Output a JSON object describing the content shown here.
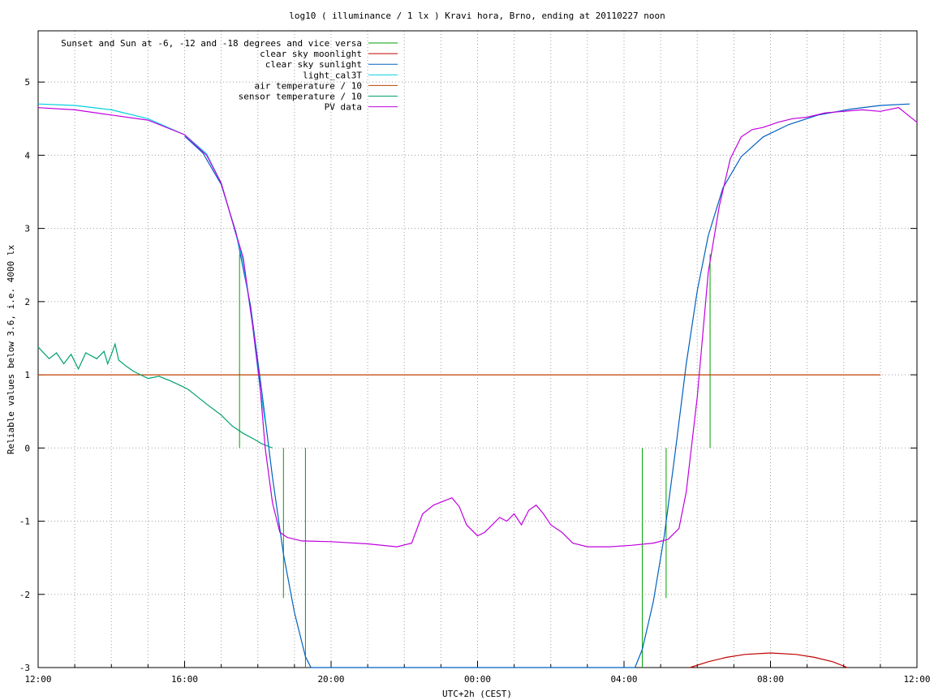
{
  "chart_data": {
    "type": "line",
    "title": "log10 ( illuminance / 1 lx ) Kravi hora, Brno, ending at 20110227 noon",
    "xlabel": "UTC+2h (CEST)",
    "ylabel": "Reliable values below 3.6, i.e. 4000 lx",
    "xlim": [
      0,
      24
    ],
    "ylim": [
      -3,
      5.7
    ],
    "x_ticks": [
      {
        "v": 0,
        "label": "12:00"
      },
      {
        "v": 4,
        "label": "16:00"
      },
      {
        "v": 8,
        "label": "20:00"
      },
      {
        "v": 12,
        "label": "00:00"
      },
      {
        "v": 16,
        "label": "04:00"
      },
      {
        "v": 20,
        "label": "08:00"
      },
      {
        "v": 24,
        "label": "12:00"
      }
    ],
    "x_minor_step": 1,
    "y_ticks": [
      -3,
      -2,
      -1,
      0,
      1,
      2,
      3,
      4,
      5
    ],
    "grid": true,
    "legend_position": "top-left",
    "series": [
      {
        "name": "Sunset and Sun at -6, -12 and -18 degrees and vice versa",
        "color": "#00a000",
        "kind": "impulses",
        "points": [
          [
            5.5,
            2.65
          ],
          [
            6.7,
            -2.05
          ],
          [
            7.3,
            -3
          ],
          [
            16.5,
            -3
          ],
          [
            17.15,
            -2.05
          ],
          [
            18.35,
            2.65
          ]
        ]
      },
      {
        "name": "clear sky moonlight",
        "color": "#c00000",
        "points": [
          [
            17.8,
            -3
          ],
          [
            18.3,
            -2.92
          ],
          [
            18.8,
            -2.86
          ],
          [
            19.3,
            -2.82
          ],
          [
            20.0,
            -2.8
          ],
          [
            20.7,
            -2.82
          ],
          [
            21.2,
            -2.86
          ],
          [
            21.7,
            -2.92
          ],
          [
            22.1,
            -3
          ]
        ]
      },
      {
        "name": "clear sky sunlight",
        "color": "#0060c0",
        "points": [
          [
            4.0,
            4.26
          ],
          [
            4.5,
            4.03
          ],
          [
            5.0,
            3.6
          ],
          [
            5.4,
            2.95
          ],
          [
            5.8,
            1.95
          ],
          [
            6.1,
            0.8
          ],
          [
            6.4,
            -0.4
          ],
          [
            6.7,
            -1.45
          ],
          [
            7.0,
            -2.25
          ],
          [
            7.3,
            -2.85
          ],
          [
            7.45,
            -3
          ],
          [
            16.3,
            -3
          ],
          [
            16.5,
            -2.75
          ],
          [
            16.8,
            -2.1
          ],
          [
            17.1,
            -1.2
          ],
          [
            17.4,
            -0.05
          ],
          [
            17.7,
            1.15
          ],
          [
            18.0,
            2.15
          ],
          [
            18.3,
            2.9
          ],
          [
            18.7,
            3.55
          ],
          [
            19.2,
            3.98
          ],
          [
            19.8,
            4.25
          ],
          [
            20.5,
            4.42
          ],
          [
            21.3,
            4.55
          ],
          [
            22.2,
            4.63
          ],
          [
            23.0,
            4.68
          ],
          [
            23.8,
            4.7
          ]
        ]
      },
      {
        "name": "light_cal3T",
        "color": "#00d0e0",
        "points": [
          [
            0.0,
            4.7
          ],
          [
            1.0,
            4.68
          ],
          [
            2.0,
            4.62
          ],
          [
            3.0,
            4.5
          ],
          [
            4.0,
            4.28
          ],
          [
            4.6,
            4.02
          ],
          [
            5.0,
            3.62
          ],
          [
            5.3,
            3.1
          ],
          [
            5.6,
            2.55
          ],
          [
            5.85,
            1.7
          ],
          [
            6.05,
            0.85
          ],
          [
            6.2,
            0.35
          ]
        ]
      },
      {
        "name": "air temperature / 10",
        "color": "#c04000",
        "points": [
          [
            0.0,
            1.0
          ],
          [
            23.0,
            1.0
          ]
        ]
      },
      {
        "name": "sensor temperature / 10",
        "color": "#00a070",
        "points": [
          [
            0.0,
            1.38
          ],
          [
            0.3,
            1.22
          ],
          [
            0.5,
            1.3
          ],
          [
            0.7,
            1.15
          ],
          [
            0.9,
            1.28
          ],
          [
            1.1,
            1.08
          ],
          [
            1.3,
            1.3
          ],
          [
            1.6,
            1.22
          ],
          [
            1.8,
            1.32
          ],
          [
            1.9,
            1.15
          ],
          [
            2.0,
            1.28
          ],
          [
            2.1,
            1.42
          ],
          [
            2.2,
            1.2
          ],
          [
            2.4,
            1.12
          ],
          [
            2.6,
            1.05
          ],
          [
            2.8,
            1.0
          ],
          [
            3.0,
            0.95
          ],
          [
            3.3,
            0.98
          ],
          [
            3.6,
            0.92
          ],
          [
            3.9,
            0.85
          ],
          [
            4.1,
            0.8
          ],
          [
            4.3,
            0.72
          ],
          [
            4.6,
            0.6
          ],
          [
            5.0,
            0.45
          ],
          [
            5.3,
            0.3
          ],
          [
            5.6,
            0.2
          ],
          [
            5.9,
            0.12
          ],
          [
            6.1,
            0.06
          ],
          [
            6.3,
            0.02
          ],
          [
            6.4,
            0.0
          ]
        ]
      },
      {
        "name": "PV data",
        "color": "#c000e0",
        "points": [
          [
            0.0,
            4.65
          ],
          [
            1.0,
            4.62
          ],
          [
            2.0,
            4.55
          ],
          [
            3.0,
            4.48
          ],
          [
            4.0,
            4.28
          ],
          [
            4.6,
            4.0
          ],
          [
            5.0,
            3.62
          ],
          [
            5.3,
            3.1
          ],
          [
            5.6,
            2.6
          ],
          [
            5.85,
            1.7
          ],
          [
            6.05,
            0.9
          ],
          [
            6.2,
            0.0
          ],
          [
            6.4,
            -0.75
          ],
          [
            6.6,
            -1.15
          ],
          [
            6.8,
            -1.22
          ],
          [
            7.2,
            -1.27
          ],
          [
            8.0,
            -1.28
          ],
          [
            9.0,
            -1.31
          ],
          [
            9.8,
            -1.35
          ],
          [
            10.2,
            -1.3
          ],
          [
            10.5,
            -0.9
          ],
          [
            10.8,
            -0.78
          ],
          [
            11.1,
            -0.72
          ],
          [
            11.3,
            -0.68
          ],
          [
            11.5,
            -0.8
          ],
          [
            11.7,
            -1.05
          ],
          [
            12.0,
            -1.2
          ],
          [
            12.2,
            -1.15
          ],
          [
            12.4,
            -1.05
          ],
          [
            12.6,
            -0.95
          ],
          [
            12.8,
            -1.0
          ],
          [
            13.0,
            -0.9
          ],
          [
            13.2,
            -1.05
          ],
          [
            13.4,
            -0.85
          ],
          [
            13.6,
            -0.78
          ],
          [
            13.8,
            -0.9
          ],
          [
            14.0,
            -1.05
          ],
          [
            14.3,
            -1.15
          ],
          [
            14.6,
            -1.3
          ],
          [
            15.0,
            -1.35
          ],
          [
            15.6,
            -1.35
          ],
          [
            16.2,
            -1.33
          ],
          [
            16.8,
            -1.3
          ],
          [
            17.2,
            -1.25
          ],
          [
            17.5,
            -1.1
          ],
          [
            17.7,
            -0.6
          ],
          [
            18.0,
            0.7
          ],
          [
            18.3,
            2.4
          ],
          [
            18.6,
            3.3
          ],
          [
            18.9,
            3.95
          ],
          [
            19.2,
            4.25
          ],
          [
            19.5,
            4.35
          ],
          [
            19.8,
            4.38
          ],
          [
            20.2,
            4.45
          ],
          [
            20.6,
            4.5
          ],
          [
            21.0,
            4.52
          ],
          [
            21.5,
            4.58
          ],
          [
            22.0,
            4.6
          ],
          [
            22.5,
            4.62
          ],
          [
            23.0,
            4.6
          ],
          [
            23.5,
            4.65
          ],
          [
            24.0,
            4.45
          ]
        ]
      }
    ]
  }
}
